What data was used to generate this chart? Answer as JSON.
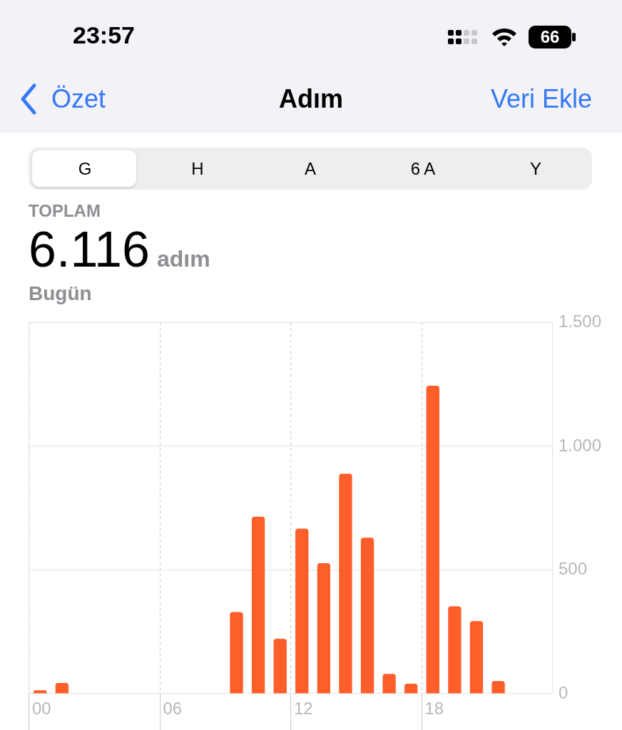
{
  "chart_data": {
    "type": "bar",
    "title": "Adım",
    "annotations": [
      "23:57",
      "66",
      "Özet",
      "Veri Ekle",
      "G",
      "H",
      "A",
      "6 A",
      "Y",
      "TOPLAM",
      "6.116",
      "adım",
      "Bugün"
    ],
    "categories": [
      "00",
      null,
      null,
      null,
      null,
      null,
      "06",
      null,
      null,
      null,
      null,
      null,
      "12",
      null,
      null,
      null,
      null,
      null,
      "18",
      null,
      null,
      null,
      null,
      null
    ],
    "values": [
      14,
      43,
      0,
      0,
      0,
      0,
      0,
      0,
      0,
      330,
      715,
      222,
      667,
      527,
      889,
      630,
      80,
      40,
      1245,
      353,
      293,
      51,
      0,
      0
    ],
    "color": "#fd5e2a",
    "ylim": [
      0,
      1500
    ],
    "yticks": [
      0,
      500,
      {
        "value": 1000,
        "label": "1.000"
      },
      {
        "value": 1500,
        "label": "1.500"
      }
    ],
    "grid": true,
    "legend": false
  }
}
